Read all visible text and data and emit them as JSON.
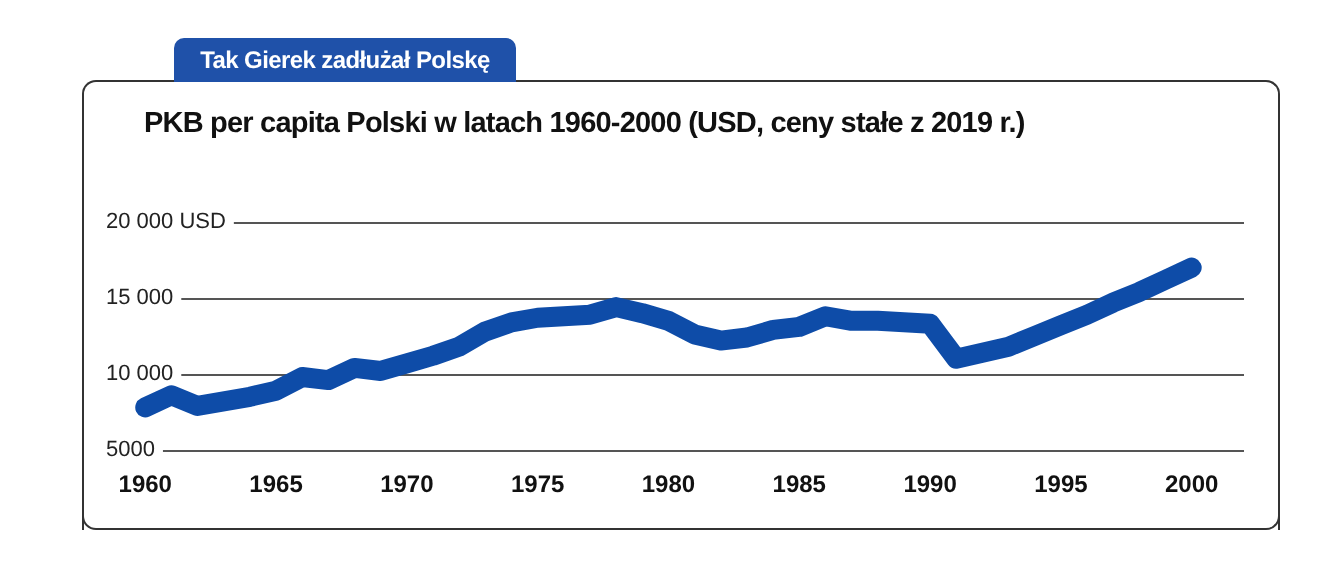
{
  "chart_data": {
    "type": "line",
    "title": "Tak Gierek zadłużał Polskę",
    "subtitle": "PKB per capita Polski w latach 1960-2000 (USD, ceny stałe z 2019 r.)",
    "x": [
      1960,
      1961,
      1962,
      1963,
      1964,
      1965,
      1966,
      1967,
      1968,
      1969,
      1970,
      1971,
      1972,
      1973,
      1974,
      1975,
      1976,
      1977,
      1978,
      1979,
      1980,
      1981,
      1982,
      1983,
      1984,
      1985,
      1986,
      1987,
      1988,
      1989,
      1990,
      1991,
      1992,
      1993,
      1994,
      1995,
      1996,
      1997,
      1998,
      1999,
      2000
    ],
    "series": [
      {
        "color": "#0e4ca8",
        "values": [
          7800,
          8600,
          7900,
          8200,
          8500,
          8900,
          9800,
          9600,
          10400,
          10200,
          10700,
          11200,
          11800,
          12800,
          13400,
          13700,
          13800,
          13900,
          14400,
          14000,
          13500,
          12600,
          12200,
          12400,
          12900,
          13100,
          13800,
          13500,
          13500,
          13400,
          13300,
          11000,
          11400,
          11800,
          12500,
          13200,
          13900,
          14700,
          15400,
          16200,
          17000
        ]
      }
    ],
    "xlim": [
      1958.5,
      2002
    ],
    "xticks": [
      1960,
      1965,
      1970,
      1975,
      1980,
      1985,
      1990,
      1995,
      2000
    ],
    "ylim": [
      5000,
      20000
    ],
    "yticks": [
      {
        "value": 5000,
        "label": "5000"
      },
      {
        "value": 10000,
        "label": "10 000"
      },
      {
        "value": 15000,
        "label": "15 000"
      },
      {
        "value": 20000,
        "label": "20 000 USD"
      }
    ],
    "grid": "y",
    "line_style": "solid"
  }
}
